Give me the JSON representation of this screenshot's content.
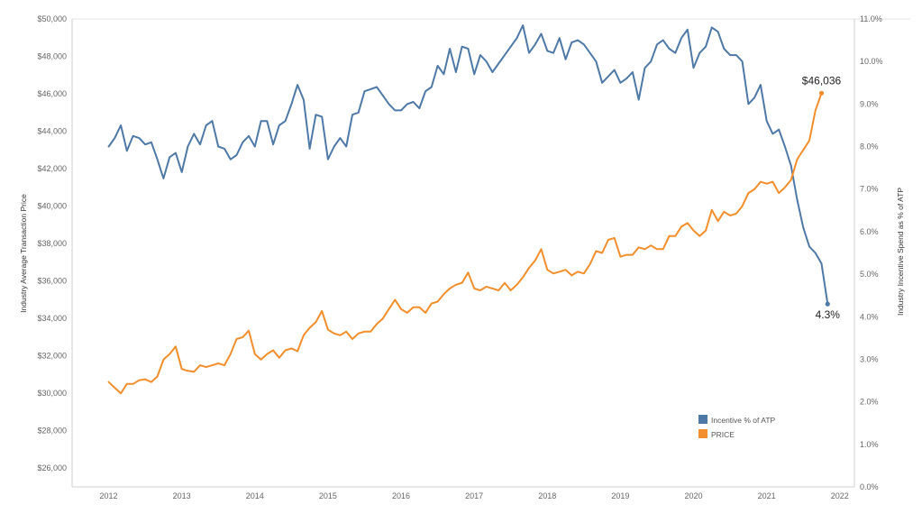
{
  "chart_data": {
    "type": "line",
    "title": "",
    "xlabel": "",
    "ylabel": "Industry Average Transaction Price",
    "y2label": "Industry Incentive Spend as % of ATP",
    "xlim": [
      2011.5,
      2022.2
    ],
    "ylim": [
      25000,
      50000
    ],
    "y2lim": [
      0,
      11
    ],
    "x_ticks": [
      "2012",
      "2013",
      "2014",
      "2015",
      "2016",
      "2017",
      "2018",
      "2019",
      "2020",
      "2021",
      "2022"
    ],
    "y_ticks": [
      "$26,000",
      "$28,000",
      "$30,000",
      "$32,000",
      "$34,000",
      "$36,000",
      "$38,000",
      "$40,000",
      "$42,000",
      "$44,000",
      "$46,000",
      "$48,000",
      "$50,000"
    ],
    "y2_ticks": [
      "0.0%",
      "1.0%",
      "2.0%",
      "3.0%",
      "4.0%",
      "5.0%",
      "6.0%",
      "7.0%",
      "8.0%",
      "9.0%",
      "10.0%",
      "11.0%"
    ],
    "legend_position": "bottom-right",
    "grid": "horizontal top line only",
    "series": [
      {
        "name": "Incentive % of ATP",
        "axis": "right",
        "color": "#4e79a7",
        "x_start": "2012-01",
        "x_step": "month",
        "values": [
          8.0,
          8.2,
          8.5,
          7.9,
          8.25,
          8.2,
          8.05,
          8.1,
          7.7,
          7.25,
          7.75,
          7.85,
          7.4,
          8.0,
          8.3,
          8.05,
          8.5,
          8.6,
          8.0,
          7.95,
          7.7,
          7.8,
          8.1,
          8.25,
          8.0,
          8.6,
          8.6,
          8.05,
          8.5,
          8.6,
          9.0,
          9.45,
          9.1,
          7.95,
          8.75,
          8.7,
          7.7,
          8.0,
          8.2,
          8.0,
          8.75,
          8.8,
          9.3,
          9.35,
          9.4,
          9.2,
          9.0,
          8.85,
          8.85,
          9.0,
          9.05,
          8.9,
          9.3,
          9.4,
          9.9,
          9.7,
          10.3,
          9.75,
          10.35,
          10.3,
          9.7,
          10.15,
          10.0,
          9.75,
          9.95,
          10.15,
          10.35,
          10.55,
          10.85,
          10.2,
          10.4,
          10.65,
          10.25,
          10.2,
          10.55,
          10.05,
          10.45,
          10.5,
          10.4,
          10.2,
          10.0,
          9.5,
          9.65,
          9.8,
          9.5,
          9.6,
          9.75,
          9.1,
          9.85,
          10.0,
          10.4,
          10.5,
          10.3,
          10.2,
          10.55,
          10.75,
          9.85,
          10.2,
          10.35,
          10.8,
          10.7,
          10.3,
          10.15,
          10.15,
          10.0,
          9.0,
          9.15,
          9.45,
          8.6,
          8.3,
          8.4,
          8.0,
          7.55,
          6.75,
          6.1,
          5.65,
          5.5,
          5.25,
          4.3
        ],
        "end_label": "4.3%"
      },
      {
        "name": "PRICE",
        "axis": "left",
        "color": "#f28e2b",
        "x_start": "2012-01",
        "x_step": "month",
        "values": [
          30600,
          30300,
          30000,
          30500,
          30500,
          30700,
          30750,
          30600,
          30900,
          31800,
          32100,
          32500,
          31300,
          31200,
          31150,
          31500,
          31400,
          31500,
          31600,
          31500,
          32100,
          32900,
          33000,
          33350,
          32100,
          31800,
          32100,
          32300,
          31900,
          32300,
          32400,
          32250,
          33100,
          33500,
          33800,
          34400,
          33400,
          33200,
          33100,
          33300,
          32900,
          33200,
          33300,
          33300,
          33700,
          34000,
          34500,
          35000,
          34500,
          34300,
          34600,
          34600,
          34300,
          34800,
          34900,
          35300,
          35600,
          35800,
          35900,
          36450,
          35600,
          35500,
          35700,
          35600,
          35500,
          35900,
          35500,
          35800,
          36200,
          36700,
          37100,
          37700,
          36600,
          36400,
          36500,
          36600,
          36300,
          36500,
          36400,
          36900,
          37600,
          37500,
          38200,
          38300,
          37300,
          37400,
          37400,
          37800,
          37700,
          37900,
          37700,
          37700,
          38400,
          38400,
          38900,
          39100,
          38700,
          38400,
          38700,
          39800,
          39200,
          39700,
          39500,
          39600,
          40000,
          40700,
          40900,
          41300,
          41200,
          41300,
          40700,
          41000,
          41400,
          42500,
          43000,
          43500,
          45100,
          46036
        ],
        "end_label": "$46,036"
      }
    ]
  }
}
